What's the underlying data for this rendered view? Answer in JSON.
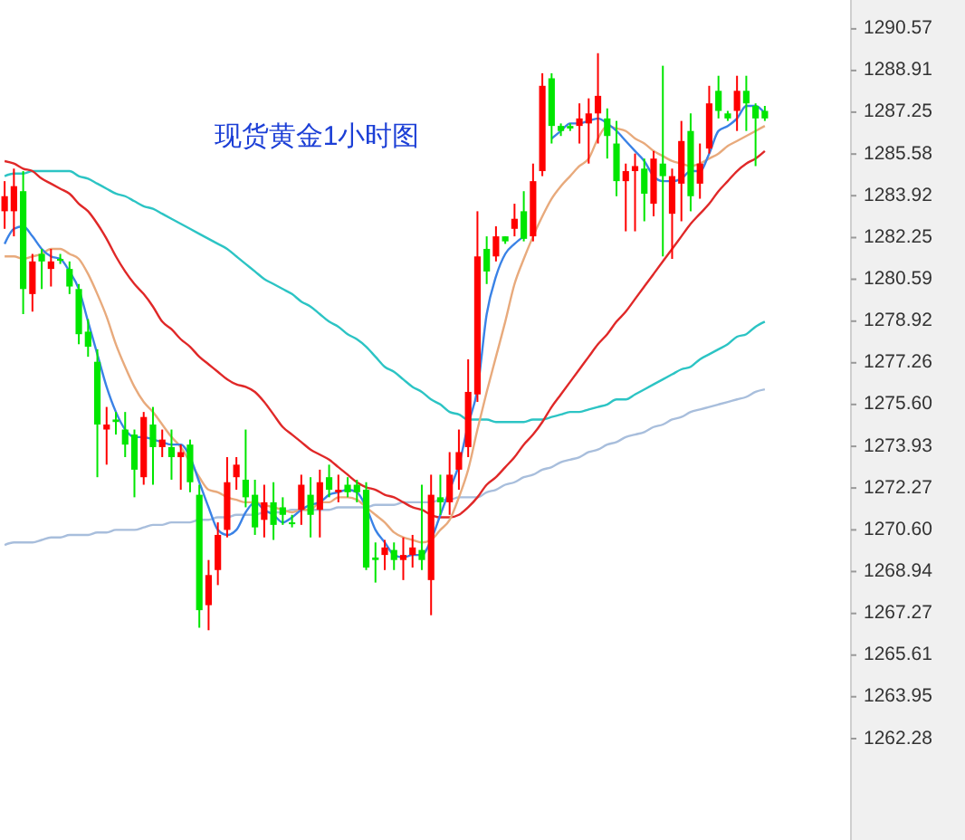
{
  "chart_data": {
    "type": "candlestick",
    "title": "现货黄金1小时图",
    "categories": [
      null,
      null,
      null,
      null,
      null,
      null,
      null,
      null,
      null,
      null,
      null,
      null,
      null,
      null,
      null,
      null,
      null,
      null,
      null,
      null,
      null,
      null,
      null,
      null,
      null,
      null,
      null,
      null,
      null,
      null,
      null,
      null,
      null,
      null,
      null,
      null,
      null,
      null,
      null,
      null,
      null,
      null,
      null,
      null,
      null,
      null,
      null,
      null,
      null,
      null,
      null,
      null,
      null,
      null,
      null,
      null,
      null,
      null,
      null,
      null,
      null,
      null,
      null,
      null,
      null,
      null,
      null,
      null,
      null,
      null,
      null,
      null,
      null,
      null,
      null,
      null,
      null,
      null,
      null,
      null,
      null,
      null,
      null
    ],
    "ohlc": [
      [
        1283.3,
        1284.5,
        1282.6,
        1283.9
      ],
      [
        1283.3,
        1285.0,
        1282.3,
        1284.3
      ],
      [
        1284.1,
        1284.9,
        1279.2,
        1280.2
      ],
      [
        1280.0,
        1281.6,
        1279.3,
        1281.3
      ],
      [
        1281.6,
        1281.8,
        1280.2,
        1281.3
      ],
      [
        1281.0,
        1281.8,
        1280.3,
        1281.3
      ],
      [
        1281.4,
        1281.6,
        1281.2,
        1281.4
      ],
      [
        1281.0,
        1281.3,
        1280.0,
        1280.3
      ],
      [
        1280.2,
        1280.4,
        1278.0,
        1278.4
      ],
      [
        1278.5,
        1279.0,
        1277.5,
        1277.9
      ],
      [
        1277.3,
        1277.8,
        1272.7,
        1274.8
      ],
      [
        1274.6,
        1275.5,
        1273.2,
        1274.8
      ],
      [
        1275.0,
        1275.3,
        1274.4,
        1274.9
      ],
      [
        1274.6,
        1275.3,
        1273.5,
        1274.0
      ],
      [
        1274.4,
        1274.6,
        1271.9,
        1273.0
      ],
      [
        1272.7,
        1275.3,
        1272.4,
        1275.1
      ],
      [
        1274.8,
        1275.5,
        1272.4,
        1273.9
      ],
      [
        1273.9,
        1274.6,
        1273.5,
        1274.2
      ],
      [
        1273.9,
        1274.6,
        1272.6,
        1273.5
      ],
      [
        1273.5,
        1274.0,
        1272.2,
        1273.7
      ],
      [
        1274.0,
        1274.2,
        1272.1,
        1272.5
      ],
      [
        1272.0,
        1272.4,
        1266.7,
        1267.4
      ],
      [
        1267.6,
        1269.4,
        1266.6,
        1268.8
      ],
      [
        1269.0,
        1270.9,
        1268.4,
        1270.4
      ],
      [
        1270.6,
        1273.5,
        1270.3,
        1272.5
      ],
      [
        1272.7,
        1273.5,
        1272.2,
        1273.2
      ],
      [
        1272.6,
        1274.6,
        1271.5,
        1271.9
      ],
      [
        1272.0,
        1272.6,
        1270.4,
        1270.7
      ],
      [
        1271.0,
        1272.4,
        1270.3,
        1271.7
      ],
      [
        1271.7,
        1272.5,
        1270.2,
        1270.8
      ],
      [
        1271.5,
        1271.9,
        1270.8,
        1271.2
      ],
      [
        1270.9,
        1271.2,
        1270.7,
        1270.9
      ],
      [
        1271.4,
        1272.8,
        1270.8,
        1272.4
      ],
      [
        1272.0,
        1272.7,
        1270.3,
        1271.2
      ],
      [
        1271.4,
        1273.0,
        1270.3,
        1272.5
      ],
      [
        1272.7,
        1273.2,
        1271.9,
        1272.2
      ],
      [
        1272.1,
        1272.8,
        1271.7,
        1272.2
      ],
      [
        1272.4,
        1272.7,
        1271.9,
        1272.1
      ],
      [
        1272.4,
        1272.6,
        1271.7,
        1272.1
      ],
      [
        1272.2,
        1272.5,
        1269.0,
        1269.1
      ],
      [
        1269.5,
        1270.1,
        1268.5,
        1269.4
      ],
      [
        1269.6,
        1270.2,
        1269.0,
        1269.9
      ],
      [
        1269.8,
        1270.1,
        1269.0,
        1269.4
      ],
      [
        1269.4,
        1270.3,
        1268.6,
        1269.6
      ],
      [
        1269.6,
        1270.4,
        1269.1,
        1269.9
      ],
      [
        1269.8,
        1272.4,
        1269.0,
        1269.4
      ],
      [
        1268.6,
        1272.8,
        1267.2,
        1272.0
      ],
      [
        1271.9,
        1272.8,
        1271.2,
        1271.7
      ],
      [
        1271.7,
        1273.7,
        1271.2,
        1272.8
      ],
      [
        1273.0,
        1274.6,
        1272.2,
        1273.7
      ],
      [
        1273.9,
        1277.4,
        1273.5,
        1276.1
      ],
      [
        1276.0,
        1283.3,
        1275.7,
        1281.5
      ],
      [
        1281.8,
        1282.3,
        1280.4,
        1280.9
      ],
      [
        1281.5,
        1282.7,
        1281.3,
        1282.3
      ],
      [
        1282.3,
        1282.3,
        1282.0,
        1282.1
      ],
      [
        1282.6,
        1283.6,
        1282.3,
        1283.0
      ],
      [
        1283.3,
        1284.1,
        1282.1,
        1282.2
      ],
      [
        1282.3,
        1285.2,
        1282.1,
        1284.5
      ],
      [
        1284.9,
        1288.8,
        1284.7,
        1288.3
      ],
      [
        1288.6,
        1288.8,
        1286.0,
        1286.7
      ],
      [
        1286.7,
        1286.8,
        1286.3,
        1286.5
      ],
      [
        1286.7,
        1286.8,
        1286.5,
        1286.6
      ],
      [
        1286.7,
        1287.6,
        1286.0,
        1287.0
      ],
      [
        1286.8,
        1287.8,
        1285.2,
        1287.2
      ],
      [
        1287.2,
        1289.6,
        1286.0,
        1287.9
      ],
      [
        1287.0,
        1287.4,
        1285.4,
        1286.3
      ],
      [
        1286.0,
        1286.9,
        1283.9,
        1284.5
      ],
      [
        1284.5,
        1285.2,
        1282.5,
        1284.9
      ],
      [
        1284.9,
        1285.6,
        1282.5,
        1285.1
      ],
      [
        1285.0,
        1285.4,
        1282.9,
        1284.0
      ],
      [
        1283.6,
        1285.7,
        1283.1,
        1285.4
      ],
      [
        1285.2,
        1289.1,
        1281.5,
        1284.7
      ],
      [
        1283.2,
        1285.0,
        1281.4,
        1284.7
      ],
      [
        1284.4,
        1286.9,
        1282.9,
        1286.1
      ],
      [
        1286.5,
        1287.2,
        1283.3,
        1283.9
      ],
      [
        1284.4,
        1286.0,
        1283.8,
        1285.2
      ],
      [
        1285.8,
        1288.3,
        1285.6,
        1287.6
      ],
      [
        1288.1,
        1288.7,
        1287.0,
        1287.3
      ],
      [
        1287.2,
        1287.3,
        1286.9,
        1287.0
      ],
      [
        1287.3,
        1288.7,
        1286.5,
        1288.1
      ],
      [
        1288.1,
        1288.7,
        1286.5,
        1287.6
      ],
      [
        1287.5,
        1287.6,
        1285.1,
        1287.0
      ],
      [
        1287.3,
        1287.5,
        1286.9,
        1287.0
      ]
    ],
    "colors": [
      "#ff0000",
      "#ff0000",
      "#00e600",
      "#ff0000",
      "#00e600",
      "#ff0000",
      "#00e600",
      "#00e600",
      "#00e600",
      "#00e600",
      "#00e600",
      "#ff0000",
      "#00e600",
      "#00e600",
      "#00e600",
      "#ff0000",
      "#00e600",
      "#ff0000",
      "#00e600",
      "#ff0000",
      "#00e600",
      "#00e600",
      "#ff0000",
      "#ff0000",
      "#ff0000",
      "#ff0000",
      "#00e600",
      "#00e600",
      "#ff0000",
      "#00e600",
      "#00e600",
      "#00e600",
      "#ff0000",
      "#00e600",
      "#ff0000",
      "#00e600",
      "#ff0000",
      "#00e600",
      "#00e600",
      "#00e600",
      "#00e600",
      "#ff0000",
      "#00e600",
      "#ff0000",
      "#ff0000",
      "#00e600",
      "#ff0000",
      "#00e600",
      "#ff0000",
      "#ff0000",
      "#ff0000",
      "#ff0000",
      "#00e600",
      "#ff0000",
      "#00e600",
      "#ff0000",
      "#00e600",
      "#ff0000",
      "#ff0000",
      "#00e600",
      "#00e600",
      "#00e600",
      "#ff0000",
      "#ff0000",
      "#ff0000",
      "#00e600",
      "#00e600",
      "#ff0000",
      "#ff0000",
      "#00e600",
      "#ff0000",
      "#00e600",
      "#ff0000",
      "#ff0000",
      "#00e600",
      "#ff0000",
      "#ff0000",
      "#00e600",
      "#00e600",
      "#ff0000",
      "#00e600",
      "#00e600",
      "#00e600"
    ],
    "series": [
      {
        "type": "line",
        "color": "#a8bedc",
        "values": [
          1270.0,
          1270.1,
          1270.1,
          1270.1,
          1270.2,
          1270.3,
          1270.3,
          1270.4,
          1270.4,
          1270.4,
          1270.5,
          1270.5,
          1270.6,
          1270.6,
          1270.6,
          1270.7,
          1270.8,
          1270.8,
          1270.9,
          1270.9,
          1270.9,
          1271.0,
          1271.0,
          1271.1,
          1271.1,
          1271.2,
          1271.2,
          1271.2,
          1271.3,
          1271.3,
          1271.3,
          1271.4,
          1271.4,
          1271.4,
          1271.4,
          1271.4,
          1271.5,
          1271.5,
          1271.5,
          1271.5,
          1271.6,
          1271.6,
          1271.6,
          1271.7,
          1271.7,
          1271.7,
          1271.7,
          1271.8,
          1271.8,
          1271.9,
          1271.9,
          1271.9,
          1272.1,
          1272.2,
          1272.4,
          1272.5,
          1272.7,
          1272.8,
          1273.0,
          1273.1,
          1273.3,
          1273.4,
          1273.5,
          1273.7,
          1273.8,
          1274.0,
          1274.1,
          1274.3,
          1274.4,
          1274.5,
          1274.7,
          1274.8,
          1275.0,
          1275.1,
          1275.3,
          1275.4,
          1275.5,
          1275.6,
          1275.7,
          1275.8,
          1275.9,
          1276.1,
          1276.2
        ]
      },
      {
        "type": "line",
        "color": "#2cc4c4",
        "values": [
          1284.7,
          1284.8,
          1284.8,
          1284.9,
          1284.9,
          1284.9,
          1284.9,
          1284.9,
          1284.7,
          1284.6,
          1284.4,
          1284.2,
          1284.0,
          1283.9,
          1283.7,
          1283.5,
          1283.4,
          1283.2,
          1283.0,
          1282.8,
          1282.6,
          1282.4,
          1282.2,
          1282.0,
          1281.8,
          1281.5,
          1281.2,
          1280.9,
          1280.6,
          1280.4,
          1280.2,
          1280.0,
          1279.7,
          1279.5,
          1279.2,
          1278.9,
          1278.7,
          1278.4,
          1278.2,
          1277.9,
          1277.5,
          1277.1,
          1276.9,
          1276.6,
          1276.3,
          1276.1,
          1275.8,
          1275.6,
          1275.3,
          1275.2,
          1275.0,
          1275.0,
          1275.0,
          1274.9,
          1274.9,
          1274.9,
          1274.9,
          1275.0,
          1275.0,
          1275.1,
          1275.2,
          1275.3,
          1275.3,
          1275.4,
          1275.5,
          1275.6,
          1275.8,
          1275.8,
          1276.0,
          1276.2,
          1276.4,
          1276.6,
          1276.8,
          1277.0,
          1277.1,
          1277.4,
          1277.6,
          1277.8,
          1278.0,
          1278.3,
          1278.4,
          1278.7,
          1278.9
        ]
      },
      {
        "type": "line",
        "color": "#e02828",
        "values": [
          1285.3,
          1285.2,
          1285.0,
          1284.9,
          1284.6,
          1284.4,
          1284.2,
          1284.0,
          1283.6,
          1283.3,
          1282.8,
          1282.2,
          1281.5,
          1280.9,
          1280.4,
          1280.0,
          1279.5,
          1278.9,
          1278.6,
          1278.2,
          1277.9,
          1277.5,
          1277.2,
          1276.9,
          1276.6,
          1276.4,
          1276.3,
          1276.1,
          1275.7,
          1275.2,
          1274.7,
          1274.4,
          1274.1,
          1273.8,
          1273.6,
          1273.4,
          1273.1,
          1272.8,
          1272.5,
          1272.3,
          1272.2,
          1272.0,
          1271.9,
          1271.7,
          1271.5,
          1271.4,
          1271.2,
          1271.1,
          1271.1,
          1271.2,
          1271.5,
          1271.9,
          1272.4,
          1272.7,
          1273.1,
          1273.5,
          1274.0,
          1274.4,
          1274.9,
          1275.5,
          1276.0,
          1276.5,
          1277.0,
          1277.5,
          1278.0,
          1278.4,
          1278.9,
          1279.3,
          1279.8,
          1280.3,
          1280.8,
          1281.3,
          1281.8,
          1282.3,
          1282.8,
          1283.2,
          1283.6,
          1284.1,
          1284.5,
          1284.9,
          1285.2,
          1285.4,
          1285.7
        ]
      },
      {
        "type": "line",
        "color": "#e8aa7c",
        "values": [
          1281.5,
          1281.5,
          1281.4,
          1281.5,
          1281.6,
          1281.8,
          1281.8,
          1281.6,
          1281.4,
          1280.8,
          1280.0,
          1279.1,
          1278.0,
          1277.1,
          1276.3,
          1275.7,
          1275.3,
          1274.8,
          1274.3,
          1273.9,
          1273.3,
          1272.7,
          1272.2,
          1272.1,
          1271.9,
          1271.8,
          1271.7,
          1271.7,
          1271.6,
          1271.5,
          1271.4,
          1271.3,
          1271.4,
          1271.4,
          1271.7,
          1271.7,
          1271.9,
          1271.9,
          1271.8,
          1271.5,
          1271.2,
          1270.9,
          1270.5,
          1270.3,
          1270.2,
          1270.1,
          1270.2,
          1270.6,
          1271.0,
          1271.9,
          1273.0,
          1274.6,
          1276.1,
          1277.5,
          1278.9,
          1280.4,
          1281.4,
          1282.3,
          1283.1,
          1283.8,
          1284.3,
          1284.7,
          1285.1,
          1285.4,
          1286.2,
          1286.7,
          1286.6,
          1286.5,
          1286.2,
          1286.0,
          1285.7,
          1285.5,
          1285.3,
          1285.2,
          1285.1,
          1285.2,
          1285.4,
          1285.6,
          1285.9,
          1286.1,
          1286.3,
          1286.5,
          1286.7
        ]
      },
      {
        "type": "line",
        "color": "#3a82e6",
        "values": [
          1282.0,
          1282.6,
          1282.7,
          1282.3,
          1281.8,
          1281.5,
          1281.4,
          1280.9,
          1280.2,
          1278.9,
          1277.6,
          1276.3,
          1275.3,
          1274.6,
          1274.3,
          1274.3,
          1274.2,
          1274.1,
          1274.0,
          1274.0,
          1273.5,
          1272.5,
          1271.5,
          1270.6,
          1270.4,
          1270.6,
          1271.3,
          1271.7,
          1271.4,
          1271.2,
          1270.9,
          1271.1,
          1271.4,
          1271.6,
          1271.7,
          1272.0,
          1272.1,
          1272.2,
          1272.1,
          1271.5,
          1270.6,
          1270.1,
          1269.6,
          1269.5,
          1269.6,
          1269.6,
          1270.2,
          1271.2,
          1272.2,
          1273.2,
          1274.8,
          1276.2,
          1279.2,
          1280.7,
          1281.6,
          1282.0,
          1282.3,
          null,
          null,
          1286.2,
          1286.5,
          1286.8,
          1286.8,
          1286.9,
          1287.0,
          1286.8,
          1286.5,
          1286.1,
          1285.7,
          1285.3,
          1284.7,
          1284.5,
          1284.5,
          1284.6,
          1284.9,
          1284.9,
          1285.6,
          1286.5,
          1286.7,
          1287.0,
          1287.5,
          1287.5,
          1287.2
        ]
      }
    ],
    "ylim": [
      1258.24,
      1291.72
    ],
    "yticks": [
      1290.57,
      1288.91,
      1287.25,
      1285.58,
      1283.92,
      1282.25,
      1280.59,
      1278.92,
      1277.26,
      {
        "value": 1275.6,
        "label": "1275.60"
      },
      1273.93,
      1272.27,
      {
        "value": 1270.6,
        "label": "1270.60"
      },
      1268.94,
      1267.27,
      1265.61,
      1263.95,
      1262.28
    ]
  }
}
